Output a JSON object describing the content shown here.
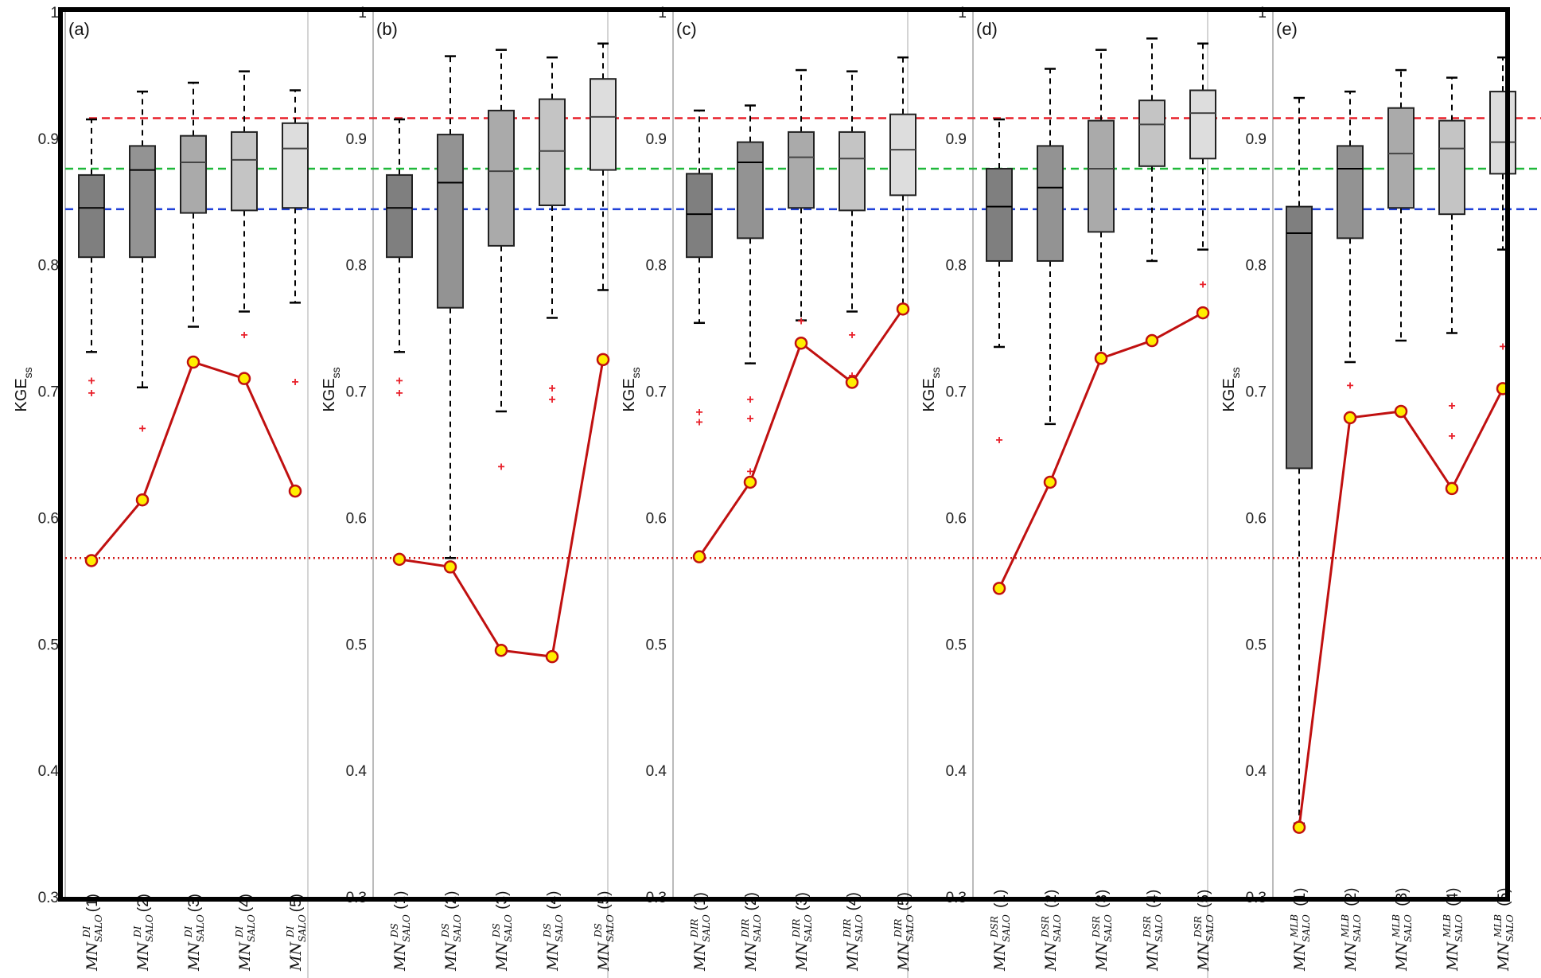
{
  "chart_data": {
    "type": "box",
    "ylabel_main": "KGE",
    "ylabel_sub": "ss",
    "ylim": [
      0.3,
      1.0
    ],
    "yticks": [
      "0.3",
      "0.4",
      "0.5",
      "0.6",
      "0.7",
      "0.8",
      "0.9",
      "1"
    ],
    "reference_lines": [
      {
        "value": 0.916,
        "color": "#e8202a",
        "style": "dashed"
      },
      {
        "value": 0.876,
        "color": "#1fb83a",
        "style": "dashed"
      },
      {
        "value": 0.844,
        "color": "#1f40d8",
        "style": "dashed"
      },
      {
        "value": 0.568,
        "color": "#d01818",
        "style": "dotted"
      }
    ],
    "box_fills": [
      "#7f7f7f",
      "#939393",
      "#aaaaaa",
      "#c4c4c4",
      "#dddddd"
    ],
    "line_color": "#c01010",
    "marker_fill": "#ffee00",
    "outlier_color": "#e8202a",
    "panels": [
      {
        "label": "(a)",
        "categories": [
          {
            "base": "MN",
            "sup": "DI",
            "sub": "SALO",
            "num": "(1)"
          },
          {
            "base": "MN",
            "sup": "DI",
            "sub": "SALO",
            "num": "(2)"
          },
          {
            "base": "MN",
            "sup": "DI",
            "sub": "SALO",
            "num": "(3)"
          },
          {
            "base": "MN",
            "sup": "DI",
            "sub": "SALO",
            "num": "(4)"
          },
          {
            "base": "MN",
            "sup": "DI",
            "sub": "SALO",
            "num": "(5)"
          }
        ],
        "boxes": [
          {
            "whislo": 0.731,
            "q1": 0.806,
            "med": 0.845,
            "q3": 0.871,
            "whishi": 0.915,
            "fliers": [
              0.709,
              0.699
            ]
          },
          {
            "whislo": 0.703,
            "q1": 0.806,
            "med": 0.875,
            "q3": 0.894,
            "whishi": 0.937,
            "fliers": [
              0.671
            ]
          },
          {
            "whislo": 0.751,
            "q1": 0.841,
            "med": 0.881,
            "q3": 0.902,
            "whishi": 0.944,
            "fliers": []
          },
          {
            "whislo": 0.763,
            "q1": 0.843,
            "med": 0.883,
            "q3": 0.905,
            "whishi": 0.953,
            "fliers": [
              0.745
            ]
          },
          {
            "whislo": 0.77,
            "q1": 0.845,
            "med": 0.892,
            "q3": 0.912,
            "whishi": 0.938,
            "fliers": [
              0.708
            ]
          }
        ],
        "line": [
          0.566,
          0.614,
          0.723,
          0.71,
          0.621
        ]
      },
      {
        "label": "(b)",
        "categories": [
          {
            "base": "MN",
            "sup": "DS",
            "sub": "SALO",
            "num": "(1)"
          },
          {
            "base": "MN",
            "sup": "DS",
            "sub": "SALO",
            "num": "(2)"
          },
          {
            "base": "MN",
            "sup": "DS",
            "sub": "SALO",
            "num": "(3)"
          },
          {
            "base": "MN",
            "sup": "DS",
            "sub": "SALO",
            "num": "(4)"
          },
          {
            "base": "MN",
            "sup": "DS",
            "sub": "SALO",
            "num": "(5)"
          }
        ],
        "boxes": [
          {
            "whislo": 0.731,
            "q1": 0.806,
            "med": 0.845,
            "q3": 0.871,
            "whishi": 0.915,
            "fliers": [
              0.709,
              0.699
            ]
          },
          {
            "whislo": 0.568,
            "q1": 0.766,
            "med": 0.865,
            "q3": 0.903,
            "whishi": 0.965,
            "fliers": []
          },
          {
            "whislo": 0.684,
            "q1": 0.815,
            "med": 0.874,
            "q3": 0.922,
            "whishi": 0.97,
            "fliers": [
              0.641
            ]
          },
          {
            "whislo": 0.758,
            "q1": 0.847,
            "med": 0.89,
            "q3": 0.931,
            "whishi": 0.964,
            "fliers": [
              0.703,
              0.694
            ]
          },
          {
            "whislo": 0.78,
            "q1": 0.875,
            "med": 0.917,
            "q3": 0.947,
            "whishi": 0.975,
            "fliers": []
          }
        ],
        "line": [
          0.567,
          0.561,
          0.495,
          0.49,
          0.725
        ]
      },
      {
        "label": "(c)",
        "categories": [
          {
            "base": "MN",
            "sup": "DIR",
            "sub": "SALO",
            "num": "(1)"
          },
          {
            "base": "MN",
            "sup": "DIR",
            "sub": "SALO",
            "num": "(2)"
          },
          {
            "base": "MN",
            "sup": "DIR",
            "sub": "SALO",
            "num": "(3)"
          },
          {
            "base": "MN",
            "sup": "DIR",
            "sub": "SALO",
            "num": "(4)"
          },
          {
            "base": "MN",
            "sup": "DIR",
            "sub": "SALO",
            "num": "(5)"
          }
        ],
        "boxes": [
          {
            "whislo": 0.754,
            "q1": 0.806,
            "med": 0.84,
            "q3": 0.872,
            "whishi": 0.922,
            "fliers": [
              0.684,
              0.676
            ]
          },
          {
            "whislo": 0.722,
            "q1": 0.821,
            "med": 0.881,
            "q3": 0.897,
            "whishi": 0.926,
            "fliers": [
              0.694,
              0.679,
              0.637
            ]
          },
          {
            "whislo": 0.756,
            "q1": 0.845,
            "med": 0.885,
            "q3": 0.905,
            "whishi": 0.954,
            "fliers": [
              0.756
            ]
          },
          {
            "whislo": 0.763,
            "q1": 0.843,
            "med": 0.884,
            "q3": 0.905,
            "whishi": 0.953,
            "fliers": [
              0.745,
              0.713
            ]
          },
          {
            "whislo": 0.765,
            "q1": 0.855,
            "med": 0.891,
            "q3": 0.919,
            "whishi": 0.964,
            "fliers": []
          }
        ],
        "line": [
          0.569,
          0.628,
          0.738,
          0.707,
          0.765
        ]
      },
      {
        "label": "(d)",
        "categories": [
          {
            "base": "MN",
            "sup": "DSR",
            "sub": "SALO",
            "num": "(1)"
          },
          {
            "base": "MN",
            "sup": "DSR",
            "sub": "SALO",
            "num": "(2)"
          },
          {
            "base": "MN",
            "sup": "DSR",
            "sub": "SALO",
            "num": "(3)"
          },
          {
            "base": "MN",
            "sup": "DSR",
            "sub": "SALO",
            "num": "(4)"
          },
          {
            "base": "MN",
            "sup": "DSR",
            "sub": "SALO",
            "num": "(5)"
          }
        ],
        "boxes": [
          {
            "whislo": 0.735,
            "q1": 0.803,
            "med": 0.846,
            "q3": 0.876,
            "whishi": 0.915,
            "fliers": [
              0.662
            ]
          },
          {
            "whislo": 0.674,
            "q1": 0.803,
            "med": 0.861,
            "q3": 0.894,
            "whishi": 0.955,
            "fliers": []
          },
          {
            "whislo": 0.727,
            "q1": 0.826,
            "med": 0.876,
            "q3": 0.914,
            "whishi": 0.97,
            "fliers": []
          },
          {
            "whislo": 0.803,
            "q1": 0.878,
            "med": 0.911,
            "q3": 0.93,
            "whishi": 0.979,
            "fliers": []
          },
          {
            "whislo": 0.812,
            "q1": 0.884,
            "med": 0.92,
            "q3": 0.938,
            "whishi": 0.975,
            "fliers": [
              0.785
            ]
          }
        ],
        "line": [
          0.544,
          0.628,
          0.726,
          0.74,
          0.762
        ]
      },
      {
        "label": "(e)",
        "categories": [
          {
            "base": "MN",
            "sup": "MLB",
            "sub": "SALO",
            "num": "(1)"
          },
          {
            "base": "MN",
            "sup": "MLB",
            "sub": "SALO",
            "num": "(2)"
          },
          {
            "base": "MN",
            "sup": "MLB",
            "sub": "SALO",
            "num": "(3)"
          },
          {
            "base": "MN",
            "sup": "MLB",
            "sub": "SALO",
            "num": "(4)"
          },
          {
            "base": "MN",
            "sup": "MLB",
            "sub": "SALO",
            "num": "(5)"
          }
        ],
        "boxes": [
          {
            "whislo": 0.358,
            "q1": 0.639,
            "med": 0.825,
            "q3": 0.846,
            "whishi": 0.932,
            "fliers": []
          },
          {
            "whislo": 0.723,
            "q1": 0.821,
            "med": 0.876,
            "q3": 0.894,
            "whishi": 0.937,
            "fliers": [
              0.705
            ]
          },
          {
            "whislo": 0.74,
            "q1": 0.845,
            "med": 0.888,
            "q3": 0.924,
            "whishi": 0.954,
            "fliers": []
          },
          {
            "whislo": 0.746,
            "q1": 0.84,
            "med": 0.892,
            "q3": 0.914,
            "whishi": 0.948,
            "fliers": [
              0.689,
              0.665
            ]
          },
          {
            "whislo": 0.812,
            "q1": 0.872,
            "med": 0.897,
            "q3": 0.937,
            "whishi": 0.964,
            "fliers": [
              0.736
            ]
          }
        ],
        "line": [
          0.355,
          0.679,
          0.684,
          0.623,
          0.702
        ]
      }
    ]
  }
}
